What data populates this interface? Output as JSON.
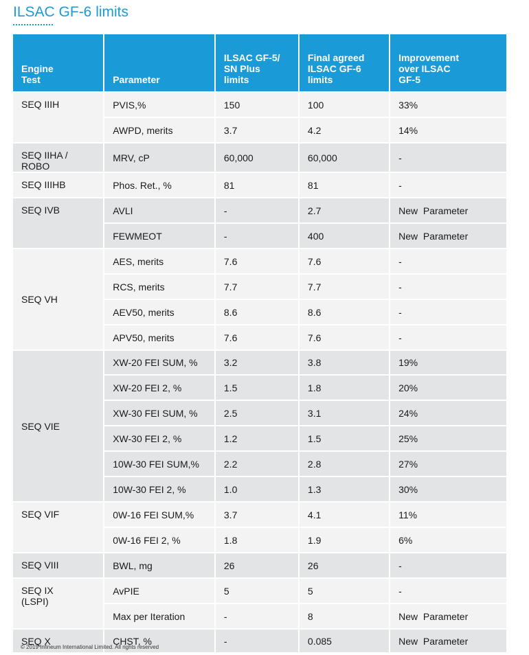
{
  "title": "ILSAC GF-6 limits",
  "header": {
    "engine_test": [
      "Engine",
      "Test"
    ],
    "parameter": "Parameter",
    "gf5": [
      "ILSAC GF-5/",
      "SN Plus",
      "limits"
    ],
    "gf6": [
      "Final agreed",
      "ILSAC GF-6",
      "limits"
    ],
    "improvement": [
      "Improvement",
      "over ILSAC",
      "GF-5"
    ]
  },
  "groups": [
    {
      "test": "SEQ IIIH",
      "rows": [
        {
          "parameter": "PVIS,%",
          "gf5": "150",
          "gf6": "100",
          "improvement": "33%"
        },
        {
          "parameter": "AWPD, merits",
          "gf5": "3.7",
          "gf6": "4.2",
          "improvement": "14%"
        }
      ]
    },
    {
      "test": "SEQ IIHA / ROBO",
      "rows": [
        {
          "parameter": "MRV, cP",
          "gf5": "60,000",
          "gf6": "60,000",
          "improvement": "-"
        }
      ]
    },
    {
      "test": "SEQ IIIHB",
      "rows": [
        {
          "parameter": "Phos. Ret., %",
          "gf5": "81",
          "gf6": "81",
          "improvement": "-"
        }
      ]
    },
    {
      "test": "SEQ IVB",
      "rows": [
        {
          "parameter": "AVLI",
          "gf5": "-",
          "gf6": "2.7",
          "improvement": "New  Parameter"
        },
        {
          "parameter": "FEWMEOT",
          "gf5": "-",
          "gf6": "400",
          "improvement": "New  Parameter"
        }
      ]
    },
    {
      "test": "SEQ VH",
      "rows": [
        {
          "parameter": "AES, merits",
          "gf5": "7.6",
          "gf6": "7.6",
          "improvement": "-"
        },
        {
          "parameter": "RCS, merits",
          "gf5": "7.7",
          "gf6": "7.7",
          "improvement": "-"
        },
        {
          "parameter": "AEV50, merits",
          "gf5": "8.6",
          "gf6": "8.6",
          "improvement": "-"
        },
        {
          "parameter": "APV50, merits",
          "gf5": "7.6",
          "gf6": "7.6",
          "improvement": "-"
        }
      ]
    },
    {
      "test": "SEQ VIE",
      "rows": [
        {
          "parameter": "XW-20 FEI SUM, %",
          "gf5": "3.2",
          "gf6": "3.8",
          "improvement": "19%"
        },
        {
          "parameter": "XW-20 FEI 2, %",
          "gf5": "1.5",
          "gf6": "1.8",
          "improvement": "20%"
        },
        {
          "parameter": "XW-30 FEI SUM, %",
          "gf5": "2.5",
          "gf6": "3.1",
          "improvement": "24%"
        },
        {
          "parameter": "XW-30 FEI 2, %",
          "gf5": "1.2",
          "gf6": "1.5",
          "improvement": "25%"
        },
        {
          "parameter": "10W-30 FEI SUM,%",
          "gf5": "2.2",
          "gf6": "2.8",
          "improvement": "27%"
        },
        {
          "parameter": "10W-30 FEI 2, %",
          "gf5": "1.0",
          "gf6": "1.3",
          "improvement": "30%"
        }
      ]
    },
    {
      "test": "SEQ VIF",
      "rows": [
        {
          "parameter": "0W-16 FEI SUM,%",
          "gf5": "3.7",
          "gf6": "4.1",
          "improvement": "11%"
        },
        {
          "parameter": "0W-16 FEI 2, %",
          "gf5": "1.8",
          "gf6": "1.9",
          "improvement": "6%"
        }
      ]
    },
    {
      "test": "SEQ VIII",
      "rows": [
        {
          "parameter": "BWL, mg",
          "gf5": "26",
          "gf6": "26",
          "improvement": "-"
        }
      ]
    },
    {
      "test": "SEQ IX\n(LSPI)",
      "rows": [
        {
          "parameter": "AvPIE",
          "gf5": "5",
          "gf6": "5",
          "improvement": "-"
        },
        {
          "parameter": "Max per Iteration",
          "gf5": "-",
          "gf6": "8",
          "improvement": "New  Parameter"
        }
      ]
    },
    {
      "test": "SEQ X",
      "rows": [
        {
          "parameter": "CHST, %",
          "gf5": "-",
          "gf6": "0.085",
          "improvement": "New  Parameter"
        }
      ]
    }
  ],
  "footer": "© 2019 Infineum International Limited. All rights reserved"
}
